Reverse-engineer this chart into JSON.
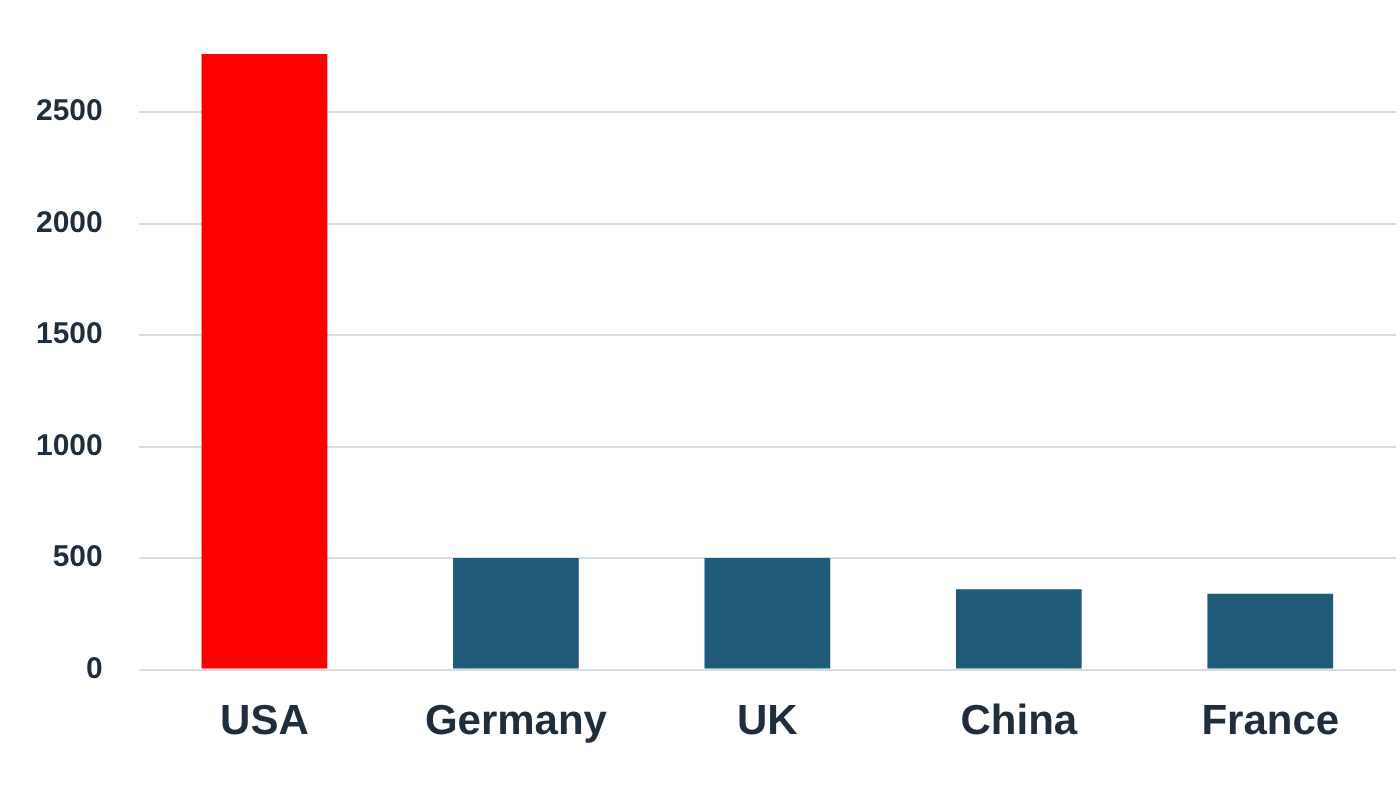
{
  "chart_data": {
    "type": "bar",
    "categories": [
      "USA",
      "Germany",
      "UK",
      "China",
      "France"
    ],
    "values": [
      2760,
      500,
      500,
      360,
      340
    ],
    "colors": [
      "#ff0000",
      "#1f5a78",
      "#1f5a78",
      "#1f5a78",
      "#1f5a78"
    ],
    "ylim": [
      0,
      2760
    ],
    "yticks": [
      0,
      500,
      1000,
      1500,
      2000,
      2500
    ],
    "grid": "y"
  }
}
